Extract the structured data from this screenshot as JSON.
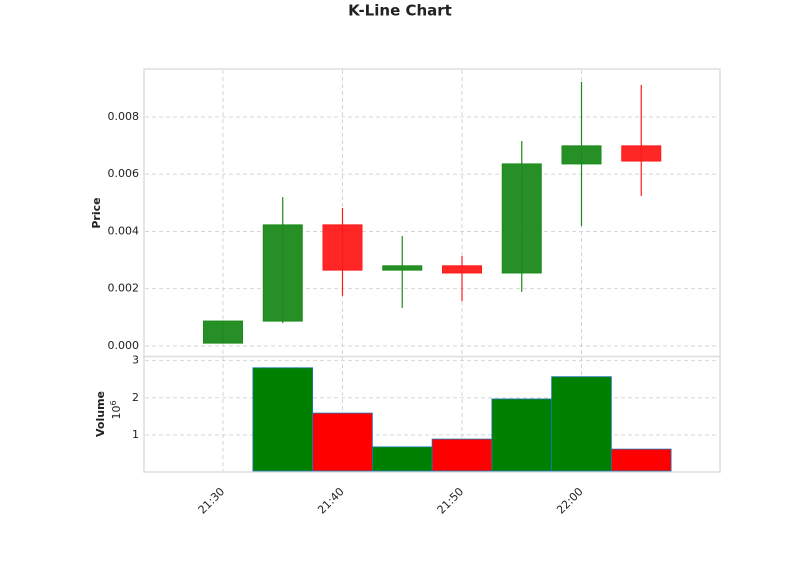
{
  "chart_data": {
    "type": "candlestick",
    "title": "K-Line Chart",
    "ylabel": "Price",
    "volume_label": "Volume",
    "volume_offset": {
      "base": "10",
      "exponent": "6"
    },
    "x": [
      "21:30",
      "21:35",
      "21:40",
      "21:45",
      "21:50",
      "21:55",
      "22:00",
      "22:05"
    ],
    "xticks": [
      "21:30",
      "21:40",
      "21:50",
      "22:00"
    ],
    "open": [
      0.0001,
      0.00087,
      0.00423,
      0.00265,
      0.0028,
      0.00255,
      0.00636,
      0.00699
    ],
    "high": [
      0.00087,
      0.0052,
      0.00482,
      0.00384,
      0.00314,
      0.00716,
      0.00922,
      0.00912
    ],
    "low": [
      0.0001,
      0.0008,
      0.00175,
      0.00133,
      0.00157,
      0.00189,
      0.00419,
      0.00524
    ],
    "close": [
      0.00087,
      0.00423,
      0.00265,
      0.0028,
      0.00255,
      0.00636,
      0.00699,
      0.00646
    ],
    "volume": [
      0.03,
      2.81,
      1.59,
      0.68,
      0.89,
      1.97,
      2.57,
      0.62
    ],
    "up_color": "#1a8a1a",
    "down_color": "#ff1a1a",
    "volume_up_color": "#008000",
    "volume_down_color": "#ff0000",
    "ylim": [
      -0.00035,
      0.00964
    ],
    "yticks": [
      {
        "value": 0,
        "label": "0.000"
      },
      {
        "value": 0.002,
        "label": "0.002"
      },
      {
        "value": 0.004,
        "label": "0.004"
      },
      {
        "value": 0.006,
        "label": "0.006"
      },
      {
        "value": 0.008,
        "label": "0.008"
      }
    ],
    "volume_ylim": [
      0.03,
      3.1
    ],
    "volume_yticks": [
      1,
      2,
      3
    ],
    "grid": true
  }
}
